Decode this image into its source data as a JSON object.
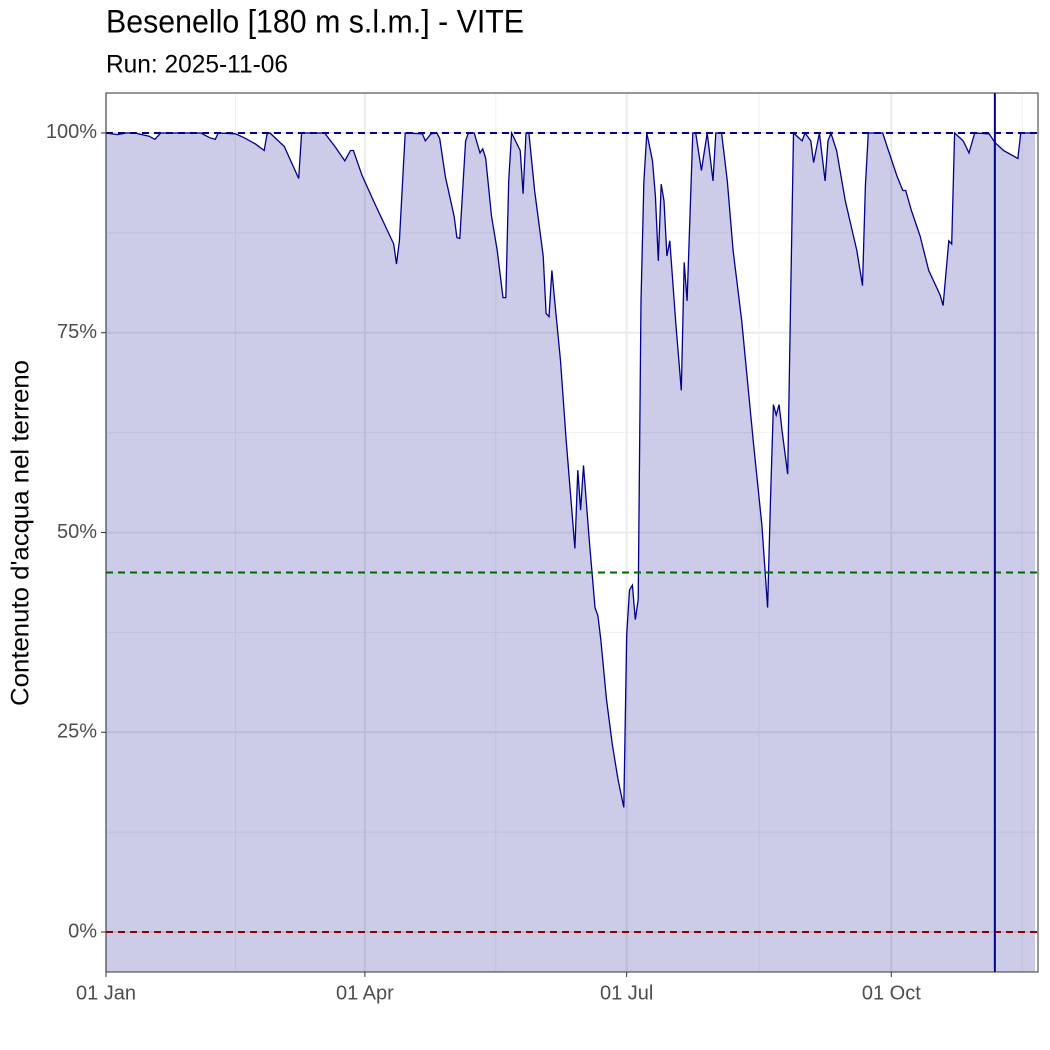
{
  "chart_data": {
    "type": "area",
    "title": "Besenello [180 m s.l.m.] - VITE",
    "subtitle": "Run: 2025-11-06",
    "y_label": "Contenuto d'acqua nel terreno",
    "x": [
      0,
      4,
      7,
      10,
      15,
      17,
      19,
      33,
      36,
      38,
      39,
      45,
      48,
      52,
      55,
      56,
      57,
      62,
      67,
      68,
      76,
      80,
      83,
      85,
      86,
      89,
      93,
      100,
      101,
      102,
      104,
      110,
      111,
      113,
      115,
      116,
      118,
      121,
      122,
      123,
      125,
      126,
      128,
      130,
      131,
      132,
      134,
      136,
      138,
      139,
      140,
      141,
      144,
      145,
      146,
      147,
      149,
      152,
      153,
      154,
      155,
      156,
      158,
      160,
      163,
      164,
      165,
      166,
      168,
      170,
      171,
      172,
      174,
      176,
      178,
      180,
      181,
      182,
      183,
      184,
      185,
      186,
      187,
      188,
      190,
      191,
      192,
      193,
      194,
      195,
      196,
      198,
      200,
      201,
      202,
      204,
      205,
      207,
      209,
      211,
      212,
      214,
      216,
      218,
      221,
      225,
      228,
      230,
      231,
      232,
      233,
      234,
      235,
      237,
      238,
      239,
      242,
      243,
      245,
      246,
      248,
      250,
      251,
      252,
      254,
      257,
      261,
      263,
      264,
      265,
      270,
      272,
      275,
      277,
      278,
      280,
      283,
      286,
      290,
      291,
      293,
      294,
      295,
      298,
      300,
      302,
      307,
      309,
      312,
      317,
      318,
      323
    ],
    "series": [
      {
        "color": "#00008b",
        "fill": "#ccccе8",
        "values": [
          100,
          99.8,
          100,
          100,
          99.6,
          99.2,
          100,
          100,
          99.4,
          99.2,
          100,
          99.9,
          99.4,
          98.6,
          97.8,
          99.9,
          100,
          98.3,
          94.3,
          100,
          100,
          98.1,
          96.5,
          97.8,
          97.8,
          94.7,
          91.5,
          86.1,
          83.6,
          86.5,
          100,
          99.9,
          99,
          99.9,
          100,
          99.3,
          94.5,
          89.6,
          86.9,
          86.8,
          99,
          100,
          100,
          97.5,
          98,
          96.8,
          89.6,
          85.3,
          79.4,
          79.4,
          94,
          100,
          97.8,
          92.4,
          100,
          100,
          92.8,
          84.6,
          77.4,
          77,
          82.8,
          79,
          71.5,
          61.5,
          48,
          57.8,
          52.8,
          58.4,
          49,
          40.6,
          39.6,
          36.6,
          29.1,
          23.5,
          19.1,
          15.6,
          37.2,
          42.8,
          43.4,
          39.1,
          41.6,
          79,
          94,
          100,
          96.5,
          92.1,
          84,
          93.6,
          91.5,
          84.6,
          86.5,
          76.5,
          67.8,
          83.8,
          79,
          100,
          100,
          95.3,
          100,
          94,
          100,
          100,
          94,
          85.3,
          76.5,
          61.5,
          50.9,
          40.6,
          54.1,
          66,
          64.7,
          66,
          62.8,
          57.3,
          79,
          100,
          99,
          100,
          99,
          96.3,
          100,
          94,
          99,
          100,
          97.8,
          91.5,
          85.3,
          80.9,
          93.4,
          100,
          100,
          97.8,
          94.6,
          92.8,
          92.8,
          90.3,
          87.1,
          82.8,
          79.7,
          78.4,
          86.5,
          86.1,
          100,
          99,
          97.5,
          100,
          99.9,
          98.8,
          97.8,
          96.8,
          100,
          100
        ]
      }
    ],
    "xlim": [
      0,
      324
    ],
    "ylim": [
      -5,
      105
    ],
    "xticks": [
      {
        "value": 0,
        "label": "01 Jan"
      },
      {
        "value": 90,
        "label": "01 Apr"
      },
      {
        "value": 181,
        "label": "01 Jul"
      },
      {
        "value": 273,
        "label": "01 Oct"
      }
    ],
    "yticks": [
      {
        "value": 0,
        "label": "0%"
      },
      {
        "value": 25,
        "label": "25%"
      },
      {
        "value": 50,
        "label": "50%"
      },
      {
        "value": 75,
        "label": "75%"
      },
      {
        "value": 100,
        "label": "100%"
      }
    ],
    "x_minor_grid": [
      45,
      135.5,
      227,
      318.5
    ],
    "y_minor_grid": [
      12.5,
      37.5,
      62.5,
      87.5
    ],
    "hlines": [
      {
        "y": 100,
        "color": "#00008b"
      },
      {
        "y": 45,
        "color": "#006400"
      },
      {
        "y": 0,
        "color": "#8b0000"
      }
    ],
    "vlines": [
      {
        "x": 309,
        "color": "#00008b"
      }
    ],
    "grid": true
  }
}
